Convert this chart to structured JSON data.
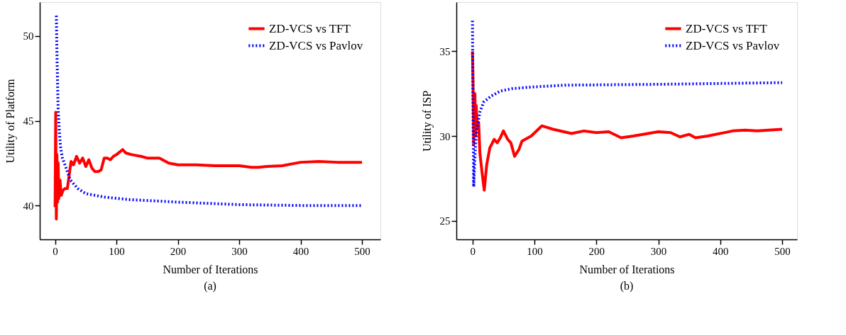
{
  "chart_data": [
    {
      "type": "line",
      "xlabel": "Number of Iterations",
      "ylabel": "Utility of Platform",
      "annotations": [
        "(a)"
      ],
      "xlim": [
        -25,
        530
      ],
      "ylim": [
        38,
        52
      ],
      "xticks": [
        0,
        100,
        200,
        300,
        400,
        500
      ],
      "yticks": [
        40,
        45,
        50
      ],
      "grid": false,
      "legend": "top right",
      "series": [
        {
          "name": "ZD-VCS vs TFT",
          "color": "#ff0000",
          "line_style": "solid",
          "x": [
            0,
            1,
            2,
            3,
            4,
            5,
            6,
            8,
            10,
            13,
            16,
            20,
            23,
            26,
            30,
            35,
            40,
            45,
            50,
            55,
            60,
            65,
            70,
            75,
            80,
            85,
            90,
            95,
            100,
            110,
            115,
            125,
            140,
            150,
            170,
            185,
            200,
            230,
            260,
            300,
            320,
            331,
            345,
            370,
            400,
            430,
            460,
            500
          ],
          "values": [
            39.9,
            45.5,
            39.2,
            43.0,
            40.2,
            42.5,
            40.4,
            41.5,
            40.6,
            40.9,
            41.0,
            41.0,
            41.8,
            42.6,
            42.4,
            42.9,
            42.5,
            42.8,
            42.3,
            42.7,
            42.2,
            42.0,
            42.0,
            42.1,
            42.8,
            42.8,
            42.7,
            42.9,
            43.0,
            43.3,
            43.1,
            43.0,
            42.9,
            42.8,
            42.8,
            42.5,
            42.4,
            42.4,
            42.35,
            42.35,
            42.25,
            42.25,
            42.3,
            42.35,
            42.55,
            42.6,
            42.55,
            42.55
          ]
        },
        {
          "name": "ZD-VCS vs Pavlov",
          "color": "#0000ff",
          "line_style": "dotted",
          "x": [
            2,
            3,
            5,
            7,
            9,
            12,
            15,
            18,
            25,
            37,
            50,
            80,
            120,
            200,
            300,
            400,
            500
          ],
          "values": [
            51.2,
            49.0,
            45.6,
            44.3,
            43.4,
            42.8,
            42.5,
            42.2,
            41.5,
            41.0,
            40.7,
            40.5,
            40.35,
            40.2,
            40.05,
            40.0,
            40.0
          ]
        }
      ]
    },
    {
      "type": "line",
      "xlabel": "Number of Iterations",
      "ylabel": "Utility of ISP",
      "annotations": [
        "(b)"
      ],
      "xlim": [
        -26,
        524
      ],
      "ylim": [
        23.9,
        37.9
      ],
      "xticks": [
        0,
        100,
        200,
        300,
        400,
        500
      ],
      "yticks": [
        25,
        30,
        35
      ],
      "grid": false,
      "legend": "top right",
      "series": [
        {
          "name": "ZD-VCS vs TFT",
          "color": "#ff0000",
          "line_style": "solid",
          "x": [
            0,
            1,
            2,
            3,
            4,
            5,
            6,
            8,
            10,
            12,
            15,
            19,
            23,
            28,
            35,
            40,
            45,
            50,
            57,
            62,
            68,
            75,
            80,
            95,
            112,
            130,
            160,
            180,
            200,
            220,
            240,
            260,
            300,
            320,
            335,
            350,
            360,
            380,
            420,
            440,
            460,
            500
          ],
          "values": [
            35.0,
            33.0,
            29.5,
            31.5,
            32.5,
            30.0,
            31.8,
            30.5,
            30.8,
            29.0,
            28.0,
            26.8,
            28.3,
            29.3,
            29.8,
            29.6,
            29.9,
            30.3,
            29.8,
            29.6,
            28.8,
            29.2,
            29.7,
            30.0,
            30.6,
            30.4,
            30.15,
            30.3,
            30.2,
            30.25,
            29.9,
            30.0,
            30.25,
            30.2,
            29.95,
            30.1,
            29.9,
            30.0,
            30.3,
            30.35,
            30.3,
            30.4
          ]
        },
        {
          "name": "ZD-VCS vs Pavlov",
          "color": "#0000ff",
          "line_style": "dotted",
          "x": [
            0,
            1,
            2,
            3,
            5,
            7,
            12,
            18,
            30,
            45,
            65,
            100,
            150,
            300,
            500
          ],
          "values": [
            36.8,
            31.0,
            27.0,
            28.0,
            29.5,
            30.4,
            31.4,
            32.0,
            32.35,
            32.65,
            32.8,
            32.9,
            33.0,
            33.05,
            33.15
          ]
        }
      ]
    }
  ]
}
